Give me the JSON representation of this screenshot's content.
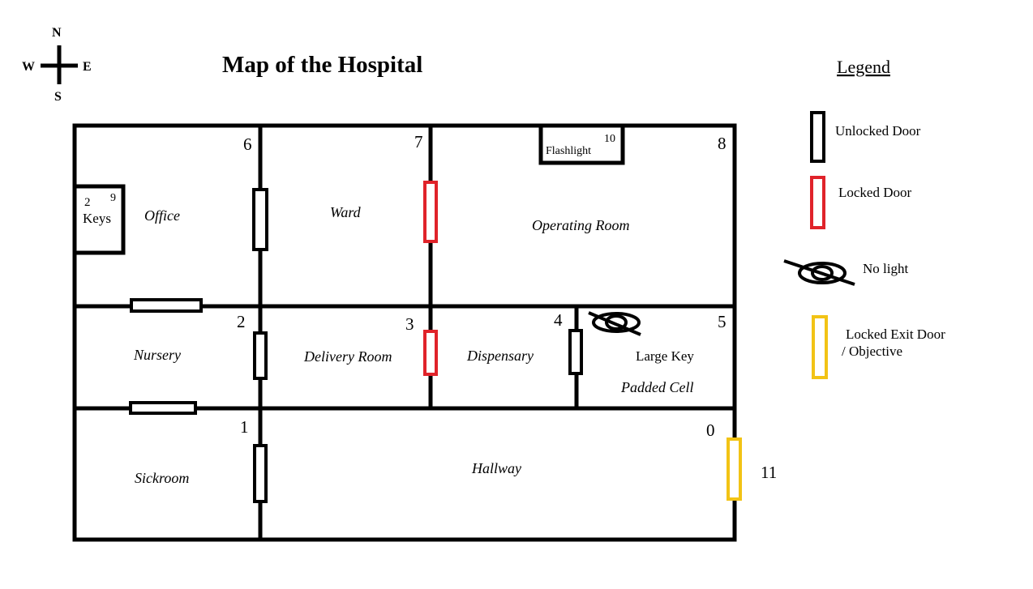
{
  "title": "Map of the Hospital",
  "compass": {
    "north": "N",
    "south": "S",
    "east": "E",
    "west": "W"
  },
  "colors": {
    "wall": "#000000",
    "unlocked_door": "#000000",
    "locked_door": "#e0232a",
    "exit_door": "#f2c315"
  },
  "rooms": {
    "office": "Office",
    "ward": "Ward",
    "operating_room": "Operating Room",
    "nursery": "Nursery",
    "delivery_room": "Delivery Room",
    "dispensary": "Dispensary",
    "padded_cell": "Padded Cell",
    "sickroom": "Sickroom",
    "hallway": "Hallway",
    "keys_closet": "Keys",
    "flashlight_closet": "Flashlight"
  },
  "items": {
    "large_key": "Large Key"
  },
  "room_numbers": {
    "hallway": "0",
    "sickroom": "1",
    "nursery": "2",
    "delivery_room": "3",
    "dispensary": "4",
    "padded_cell": "5",
    "office": "6",
    "ward": "7",
    "operating_room": "8",
    "keys_closet": "9",
    "flashlight_closet": "10",
    "exit": "11",
    "keys_closet_sub": "2"
  },
  "legend": {
    "title": "Legend",
    "unlocked_door": "Unlocked Door",
    "locked_door": "Locked Door",
    "no_light": "No light",
    "exit_line1": "Locked Exit Door",
    "exit_line2": "/ Objective"
  }
}
